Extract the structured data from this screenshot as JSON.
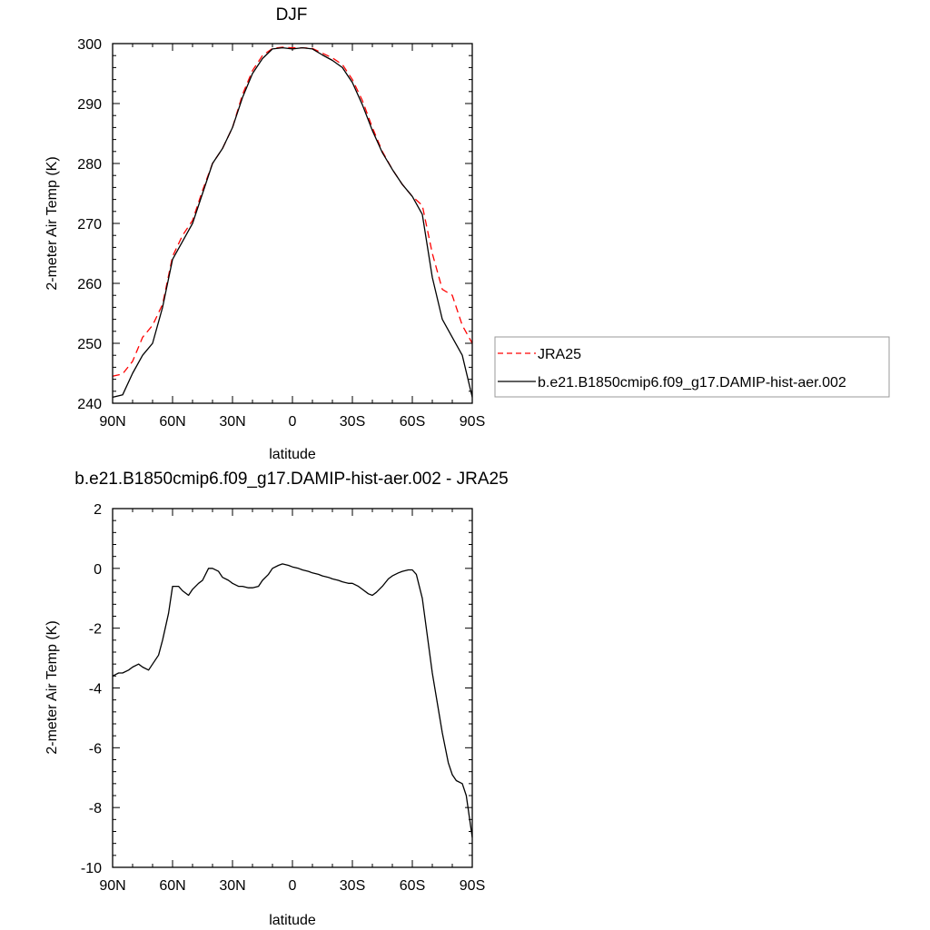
{
  "chart_data": [
    {
      "type": "line",
      "title": "DJF",
      "xlabel": "latitude",
      "ylabel": "2-meter Air Temp (K)",
      "xlim": [
        90,
        -90
      ],
      "ylim": [
        240,
        300
      ],
      "xticks": [
        90,
        60,
        30,
        0,
        -30,
        -60,
        -90
      ],
      "xtick_labels": [
        "90N",
        "60N",
        "30N",
        "0",
        "30S",
        "60S",
        "90S"
      ],
      "yticks": [
        240,
        250,
        260,
        270,
        280,
        290,
        300
      ],
      "ytick_labels": [
        "240",
        "250",
        "260",
        "270",
        "280",
        "290",
        "300"
      ],
      "legend_placement": "right",
      "series": [
        {
          "name": "JRA25",
          "color": "#ff0000",
          "dash": "dashed",
          "x": [
            90,
            85,
            80,
            75,
            70,
            65,
            60,
            55,
            50,
            45,
            40,
            35,
            30,
            25,
            20,
            15,
            10,
            5,
            0,
            -5,
            -10,
            -15,
            -20,
            -25,
            -30,
            -35,
            -40,
            -45,
            -50,
            -55,
            -60,
            -65,
            -70,
            -75,
            -80,
            -85,
            -90
          ],
          "y": [
            244.5,
            244.9,
            247.0,
            251.0,
            253.0,
            256.5,
            264.5,
            268.0,
            270.5,
            275.5,
            280.0,
            282.5,
            286.0,
            291.5,
            295.5,
            298.0,
            299.2,
            299.4,
            299.3,
            299.3,
            299.2,
            298.4,
            297.6,
            296.5,
            294.0,
            290.5,
            286.0,
            282.0,
            279.0,
            276.5,
            274.5,
            273.0,
            265.0,
            259.0,
            258.0,
            253.0,
            250.0
          ]
        },
        {
          "name": "b.e21.B1850cmip6.f09_g17.DAMIP-hist-aer.002",
          "color": "#000000",
          "dash": "solid",
          "x": [
            90,
            85,
            80,
            75,
            70,
            65,
            60,
            55,
            50,
            45,
            40,
            35,
            30,
            25,
            20,
            15,
            10,
            5,
            0,
            -5,
            -10,
            -15,
            -20,
            -25,
            -30,
            -35,
            -40,
            -45,
            -50,
            -55,
            -60,
            -65,
            -70,
            -75,
            -80,
            -85,
            -90
          ],
          "y": [
            241.0,
            241.4,
            245.0,
            248.0,
            250.0,
            256.0,
            264.0,
            267.0,
            270.0,
            275.0,
            280.0,
            282.5,
            286.0,
            291.0,
            295.0,
            297.5,
            299.1,
            299.3,
            299.1,
            299.3,
            299.1,
            298.1,
            297.2,
            296.0,
            293.5,
            289.8,
            285.5,
            281.8,
            279.0,
            276.5,
            274.5,
            271.5,
            261.0,
            254.0,
            251.0,
            248.0,
            241.0
          ]
        }
      ]
    },
    {
      "type": "line",
      "title": "b.e21.B1850cmip6.f09_g17.DAMIP-hist-aer.002 - JRA25",
      "xlabel": "latitude",
      "ylabel": "2-meter Air Temp (K)",
      "xlim": [
        90,
        -90
      ],
      "ylim": [
        -10,
        2
      ],
      "xticks": [
        90,
        60,
        30,
        0,
        -30,
        -60,
        -90
      ],
      "xtick_labels": [
        "90N",
        "60N",
        "30N",
        "0",
        "30S",
        "60S",
        "90S"
      ],
      "yticks": [
        -10,
        -8,
        -6,
        -4,
        -2,
        0,
        2
      ],
      "ytick_labels": [
        "-10",
        "-8",
        "-6",
        "-4",
        "-2",
        "0",
        "2"
      ],
      "series": [
        {
          "color": "#000000",
          "dash": "solid",
          "x": [
            90,
            87,
            85,
            82,
            80,
            77,
            75,
            72,
            70,
            67,
            65,
            62,
            60,
            57,
            55,
            52,
            50,
            47,
            45,
            42,
            40,
            37,
            35,
            32,
            30,
            27,
            25,
            22,
            20,
            17,
            15,
            12,
            10,
            7,
            5,
            2,
            0,
            -3,
            -5,
            -8,
            -10,
            -13,
            -15,
            -18,
            -20,
            -23,
            -25,
            -28,
            -30,
            -33,
            -35,
            -38,
            -40,
            -42,
            -45,
            -48,
            -50,
            -53,
            -55,
            -58,
            -60,
            -62,
            -65,
            -67,
            -70,
            -72,
            -75,
            -78,
            -80,
            -82,
            -85,
            -87,
            -90
          ],
          "y": [
            -3.6,
            -3.5,
            -3.5,
            -3.4,
            -3.3,
            -3.2,
            -3.3,
            -3.4,
            -3.2,
            -2.9,
            -2.4,
            -1.5,
            -0.6,
            -0.6,
            -0.75,
            -0.9,
            -0.7,
            -0.5,
            -0.4,
            0.0,
            0.0,
            -0.1,
            -0.3,
            -0.4,
            -0.5,
            -0.6,
            -0.6,
            -0.65,
            -0.65,
            -0.6,
            -0.4,
            -0.2,
            0.0,
            0.1,
            0.15,
            0.1,
            0.05,
            0.0,
            -0.05,
            -0.1,
            -0.15,
            -0.2,
            -0.25,
            -0.3,
            -0.35,
            -0.4,
            -0.45,
            -0.5,
            -0.5,
            -0.6,
            -0.7,
            -0.85,
            -0.9,
            -0.8,
            -0.6,
            -0.35,
            -0.25,
            -0.15,
            -0.1,
            -0.05,
            -0.05,
            -0.2,
            -1.0,
            -2.0,
            -3.5,
            -4.3,
            -5.5,
            -6.5,
            -6.9,
            -7.1,
            -7.2,
            -7.6,
            -9.0
          ]
        }
      ]
    }
  ]
}
